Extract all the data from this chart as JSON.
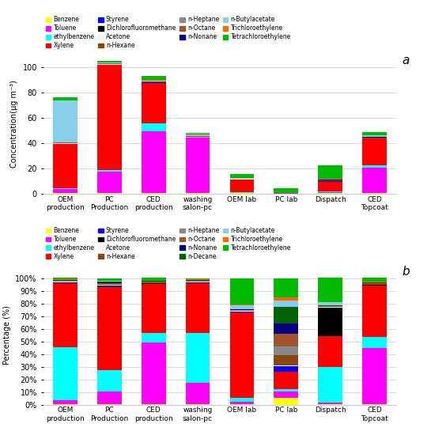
{
  "categories": [
    "OEM\nproduction",
    "PC\nProduction",
    "CED\nproduction",
    "washing\nsalon-pc",
    "OEM lab",
    "PC lab",
    "Dispatch",
    "CED\nTopcoat"
  ],
  "chart_a_label": "a",
  "chart_b_label": "b",
  "compounds_a": [
    "Benzene",
    "Toluene",
    "ethylbenzene",
    "Xylene",
    "Styrene",
    "Dichlorofluoromethane",
    "Acetone",
    "n-Hexane",
    "n-Heptane",
    "n-Octane",
    "n-Nonane",
    "n-Butylacetate",
    "Trichloroethylene",
    "Tetrachloroethylene"
  ],
  "colors_a": [
    "#ffff00",
    "#ff00ff",
    "#00ffff",
    "#ff0000",
    "#0000ff",
    "#000000",
    "#f5f5f5",
    "#8b4513",
    "#888888",
    "#a0522d",
    "#000080",
    "#87ceeb",
    "#ff6600",
    "#00bb00"
  ],
  "data_a": {
    "Benzene": [
      0.5,
      0.5,
      0.5,
      0.3,
      0.2,
      0.1,
      0.2,
      0.3
    ],
    "Toluene": [
      3.0,
      17.0,
      49.0,
      44.0,
      0.5,
      0.1,
      0.8,
      20.0
    ],
    "ethylbenzene": [
      0.5,
      1.0,
      6.0,
      0.5,
      0.5,
      0.1,
      0.5,
      2.0
    ],
    "Xylene": [
      35.0,
      83.0,
      32.0,
      0.5,
      10.0,
      0.1,
      8.0,
      21.0
    ],
    "Styrene": [
      0.2,
      0.2,
      0.2,
      0.2,
      0.1,
      0.0,
      0.2,
      0.2
    ],
    "Dichlorofluoromethane": [
      0.2,
      0.2,
      0.2,
      0.2,
      0.1,
      0.0,
      0.2,
      0.2
    ],
    "Acetone": [
      0.2,
      0.2,
      0.2,
      0.2,
      0.1,
      0.0,
      0.2,
      0.2
    ],
    "n-Hexane": [
      0.2,
      0.2,
      0.2,
      0.2,
      0.1,
      0.0,
      0.2,
      0.2
    ],
    "n-Heptane": [
      0.2,
      0.2,
      0.2,
      0.2,
      0.1,
      0.0,
      0.2,
      0.2
    ],
    "n-Octane": [
      0.2,
      0.2,
      0.2,
      0.2,
      0.1,
      0.0,
      0.2,
      0.2
    ],
    "n-Nonane": [
      0.2,
      0.2,
      0.2,
      0.2,
      0.1,
      0.0,
      0.2,
      0.2
    ],
    "n-Butylacetate": [
      33.0,
      0.5,
      0.5,
      0.5,
      0.5,
      0.1,
      0.5,
      1.5
    ],
    "Trichloroethylene": [
      0.2,
      0.2,
      0.2,
      0.2,
      0.1,
      0.0,
      0.2,
      0.2
    ],
    "Tetrachloroethylene": [
      2.5,
      1.0,
      3.5,
      0.5,
      3.0,
      3.5,
      10.5,
      2.0
    ]
  },
  "compounds_b": [
    "Benzene",
    "Toluene",
    "ethylbenzene",
    "Xylene",
    "Styrene",
    "Dichlorofluoromethane",
    "Acetone",
    "n-Hexane",
    "n-Heptane",
    "n-Octane",
    "n-Nonane",
    "n-Decane",
    "n-Butylacetate",
    "Trichloroethylene",
    "Tetrachloroethylene"
  ],
  "colors_b": [
    "#ffff00",
    "#ff00ff",
    "#00ffff",
    "#ff0000",
    "#0000ff",
    "#000000",
    "#f5f5f5",
    "#8b4513",
    "#888888",
    "#a0522d",
    "#000080",
    "#006400",
    "#87ceeb",
    "#ff6600",
    "#00bb00"
  ],
  "data_b_raw": {
    "Benzene": [
      0.3,
      0.5,
      0.3,
      0.3,
      0.3,
      5.0,
      0.3,
      0.3
    ],
    "Toluene": [
      3.0,
      10.0,
      51.0,
      17.0,
      2.0,
      5.0,
      1.5,
      45.0
    ],
    "ethylbenzene": [
      42.0,
      17.0,
      8.0,
      39.0,
      3.0,
      2.0,
      37.0,
      9.0
    ],
    "Xylene": [
      51.0,
      67.0,
      40.0,
      39.0,
      67.0,
      14.0,
      32.0,
      41.0
    ],
    "Styrene": [
      0.3,
      0.5,
      0.3,
      0.3,
      0.3,
      4.0,
      0.3,
      0.3
    ],
    "Dichlorofluoromethane": [
      0.3,
      0.5,
      0.3,
      0.3,
      0.3,
      0.3,
      30.0,
      0.3
    ],
    "Acetone": [
      0.3,
      0.5,
      0.3,
      0.3,
      0.3,
      0.3,
      0.3,
      0.3
    ],
    "n-Hexane": [
      0.3,
      0.5,
      0.3,
      0.3,
      0.3,
      8.0,
      0.3,
      0.3
    ],
    "n-Heptane": [
      0.3,
      0.5,
      0.3,
      0.3,
      0.3,
      7.0,
      0.3,
      0.3
    ],
    "n-Octane": [
      0.3,
      0.5,
      0.3,
      0.3,
      0.3,
      10.0,
      0.3,
      0.3
    ],
    "n-Nonane": [
      0.3,
      0.5,
      0.3,
      0.3,
      0.3,
      8.0,
      0.3,
      0.3
    ],
    "n-Decane": [
      0.3,
      0.5,
      0.3,
      0.3,
      0.3,
      13.0,
      0.3,
      0.3
    ],
    "n-Butylacetate": [
      0.3,
      0.5,
      0.3,
      0.3,
      3.0,
      5.0,
      3.5,
      0.3
    ],
    "Trichloroethylene": [
      0.3,
      0.5,
      0.3,
      0.3,
      0.3,
      3.0,
      0.3,
      0.3
    ],
    "Tetrachloroethylene": [
      1.0,
      2.0,
      2.0,
      1.0,
      21.0,
      15.0,
      25.0,
      3.0
    ]
  },
  "ylabel_a": "Concentration(μg m⁻³)",
  "ylabel_b": "Percentage (%)",
  "ylim_a": [
    0,
    110
  ],
  "yticks_a": [
    0,
    20,
    40,
    60,
    80,
    100
  ],
  "yticks_b_vals": [
    0,
    10,
    20,
    30,
    40,
    50,
    60,
    70,
    80,
    90,
    100
  ],
  "yticks_b_labels": [
    "0%",
    "10%",
    "20%",
    "30%",
    "40%",
    "50%",
    "60%",
    "70%",
    "80%",
    "90%",
    "100%"
  ],
  "bg_color": "#ffffff",
  "grid_color": "#cccccc"
}
